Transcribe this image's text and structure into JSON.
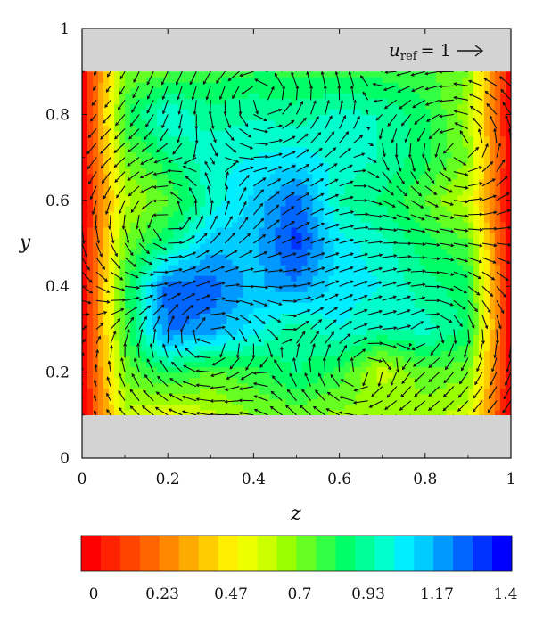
{
  "chart_data": {
    "type": "heatmap",
    "xlabel": "z",
    "ylabel": "y",
    "xlim": [
      0,
      1
    ],
    "ylim": [
      0,
      1
    ],
    "x_ticks": [
      "0",
      "0.2",
      "0.4",
      "0.6",
      "0.8",
      "1"
    ],
    "y_ticks": [
      "0",
      "0.2",
      "0.4",
      "0.6",
      "0.8",
      "1"
    ],
    "wall_bands_y": [
      [
        0,
        0.1
      ],
      [
        0.9,
        1
      ]
    ],
    "flow_domain": {
      "z": [
        0,
        1
      ],
      "y": [
        0.1,
        0.9
      ]
    },
    "reference_vector": {
      "symbol": "u",
      "subscript": "ref",
      "text": "= 1",
      "magnitude": 1
    },
    "colorbar": {
      "ticks": [
        "0",
        "0.23",
        "0.47",
        "0.7",
        "0.93",
        "1.17",
        "1.4"
      ],
      "range": [
        0,
        1.4
      ],
      "levels": 21,
      "colors": [
        "#ff0000",
        "#ff2200",
        "#ff4400",
        "#ff6600",
        "#ff8800",
        "#ffaa00",
        "#ffcc00",
        "#ffee00",
        "#eeff00",
        "#ccff00",
        "#99ff00",
        "#66ff22",
        "#33ff44",
        "#00ff66",
        "#00ff99",
        "#00ffcc",
        "#00eeff",
        "#00ccff",
        "#0099ff",
        "#0066ff",
        "#0033ff",
        "#0000ff"
      ]
    },
    "vortices": [
      {
        "z": 0.42,
        "y": 0.84,
        "strength": 1.0
      },
      {
        "z": 0.65,
        "y": 0.2,
        "strength": -1.0
      },
      {
        "z": 0.2,
        "y": 0.55,
        "strength": 0.8
      },
      {
        "z": 0.3,
        "y": 0.28,
        "strength": -0.7
      },
      {
        "z": 0.88,
        "y": 0.72,
        "strength": 0.6
      },
      {
        "z": 0.82,
        "y": 0.3,
        "strength": -0.6
      }
    ],
    "field_samples_z": [
      0,
      0.1,
      0.2,
      0.3,
      0.4,
      0.5,
      0.6,
      0.7,
      0.8,
      0.9,
      1
    ],
    "field_samples_y": [
      0.1,
      0.2,
      0.3,
      0.4,
      0.5,
      0.6,
      0.7,
      0.8,
      0.9
    ],
    "field_values": [
      [
        0.0,
        0.62,
        0.55,
        0.62,
        0.7,
        0.72,
        0.68,
        0.7,
        0.66,
        0.6,
        0.0
      ],
      [
        0.0,
        0.72,
        0.85,
        0.75,
        0.8,
        0.9,
        0.8,
        0.6,
        0.75,
        0.72,
        0.0
      ],
      [
        0.0,
        0.8,
        1.22,
        1.18,
        1.05,
        0.9,
        1.02,
        0.95,
        0.98,
        0.88,
        0.0
      ],
      [
        0.0,
        0.8,
        1.25,
        1.25,
        1.12,
        1.2,
        1.05,
        1.02,
        0.92,
        0.85,
        0.0
      ],
      [
        0.0,
        0.72,
        0.9,
        1.12,
        1.12,
        1.3,
        1.05,
        0.98,
        0.85,
        0.78,
        0.0
      ],
      [
        0.0,
        0.62,
        0.75,
        0.98,
        1.1,
        1.25,
        0.95,
        0.88,
        0.76,
        0.6,
        0.0
      ],
      [
        0.0,
        0.72,
        0.88,
        1.0,
        1.02,
        1.05,
        1.0,
        0.95,
        0.85,
        0.7,
        0.0
      ],
      [
        0.0,
        0.82,
        1.02,
        0.92,
        0.95,
        0.92,
        0.98,
        0.95,
        0.85,
        0.66,
        0.0
      ],
      [
        0.0,
        0.7,
        0.75,
        0.8,
        0.82,
        0.82,
        0.8,
        0.8,
        0.78,
        0.7,
        0.0
      ]
    ]
  }
}
